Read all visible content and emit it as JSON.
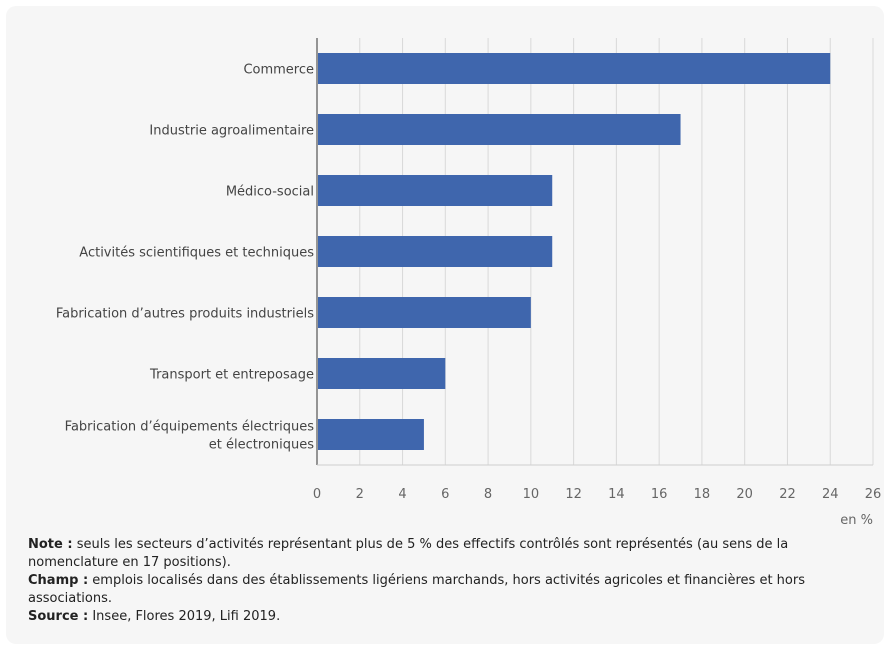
{
  "chart_data": {
    "type": "bar",
    "orientation": "horizontal",
    "categories": [
      "Commerce",
      "Industrie agroalimentaire",
      "Médico-social",
      "Activités scientifiques et techniques",
      "Fabrication d’autres produits industriels",
      "Transport et entreposage",
      [
        "Fabrication d’équipements électriques",
        "et électroniques"
      ]
    ],
    "values": [
      24,
      17,
      11,
      11,
      10,
      6,
      5
    ],
    "xlim": [
      0,
      26
    ],
    "xticks": [
      0,
      2,
      4,
      6,
      8,
      10,
      12,
      14,
      16,
      18,
      20,
      22,
      24,
      26
    ],
    "unit_label": "en %",
    "grid": "vertical",
    "bar_color": "#3f66ad",
    "grid_color": "#d9d9d9"
  },
  "notes": {
    "note_label": "Note :",
    "note_text": " seuls les secteurs d’activités représentant plus de 5 % des effectifs contrôlés sont représentés (au sens de la nomenclature en 17 positions).",
    "champ_label": "Champ :",
    "champ_text": " emplois localisés dans des établissements ligériens marchands, hors activités agricoles et financières et hors associations.",
    "source_label": "Source :",
    "source_text": " Insee, Flores 2019, Lifi 2019."
  }
}
